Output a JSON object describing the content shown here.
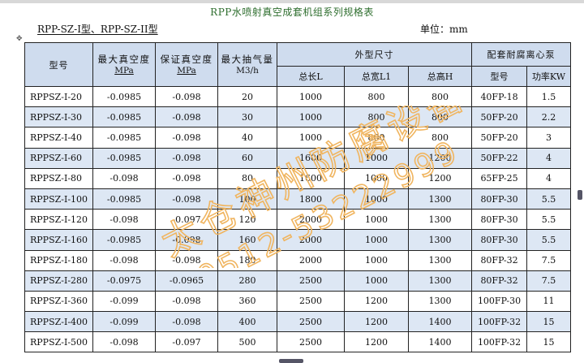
{
  "title": "RPP水喷射真空成套机组系列规格表",
  "subtitle": "RPP-SZ-I型、RPP-SZ-II型",
  "unit_label": "单位：mm",
  "headers": {
    "model": "型号",
    "ult_vacuum": "最大真空度",
    "ult_vacuum_unit": "MPa",
    "guar_vacuum": "保证真空度",
    "guar_vacuum_unit": "MPa",
    "pump_rate": "最大抽气量",
    "pump_rate_unit": "M3/h",
    "dims": "外型尺寸",
    "dim_length": "总长L",
    "dim_width": "总宽L1",
    "dim_height": "总高H",
    "pump": "配套耐腐离心泵",
    "pump_model": "型号",
    "pump_power": "功率KW"
  },
  "rows": [
    {
      "model": "RPPSZ-I-20",
      "ult": "-0.0985",
      "guar": "-0.098",
      "rate": "20",
      "L": "1000",
      "L1": "800",
      "H": "800",
      "pump": "40FP-18",
      "kw": "1.5"
    },
    {
      "model": "RPPSZ-I-30",
      "ult": "-0.0985",
      "guar": "-0.098",
      "rate": "30",
      "L": "1000",
      "L1": "800",
      "H": "800",
      "pump": "50FP-20",
      "kw": "2.2"
    },
    {
      "model": "RPPSZ-I-40",
      "ult": "-0.0985",
      "guar": "-0.098",
      "rate": "40",
      "L": "1000",
      "L1": "800",
      "H": "800",
      "pump": "50FP-20",
      "kw": "3"
    },
    {
      "model": "RPPSZ-I-60",
      "ult": "-0.0985",
      "guar": "-0.098",
      "rate": "60",
      "L": "1600",
      "L1": "1000",
      "H": "1200",
      "pump": "50FP-22",
      "kw": "4"
    },
    {
      "model": "RPPSZ-I-80",
      "ult": "-0.098",
      "guar": "-0.098",
      "rate": "80",
      "L": "1600",
      "L1": "1000",
      "H": "1200",
      "pump": "65FP-25",
      "kw": "4"
    },
    {
      "model": "RPPSZ-I-100",
      "ult": "-0.0985",
      "guar": "-0.098",
      "rate": "100",
      "L": "1800",
      "L1": "1000",
      "H": "1300",
      "pump": "80FP-30",
      "kw": "5.5"
    },
    {
      "model": "RPPSZ-I-120",
      "ult": "-0.098",
      "guar": "-0.097",
      "rate": "120",
      "L": "2000",
      "L1": "1000",
      "H": "1300",
      "pump": "80FP-30",
      "kw": "5.5"
    },
    {
      "model": "RPPSZ-I-160",
      "ult": "-0.0985",
      "guar": "-0.098",
      "rate": "160",
      "L": "2000",
      "L1": "1000",
      "H": "1300",
      "pump": "80FP-30",
      "kw": "5.5"
    },
    {
      "model": "RPPSZ-I-180",
      "ult": "-0.098",
      "guar": "-0.098",
      "rate": "180",
      "L": "2000",
      "L1": "1000",
      "H": "1300",
      "pump": "80FP-32",
      "kw": "7.5"
    },
    {
      "model": "RPPSZ-I-280",
      "ult": "-0.0975",
      "guar": "-0.0965",
      "rate": "280",
      "L": "2500",
      "L1": "1000",
      "H": "1300",
      "pump": "80FP-32",
      "kw": "7.5"
    },
    {
      "model": "RPPSZ-I-360",
      "ult": "-0.099",
      "guar": "-0.098",
      "rate": "360",
      "L": "2500",
      "L1": "1200",
      "H": "1300",
      "pump": "100FP-30",
      "kw": "11"
    },
    {
      "model": "RPPSZ-I-400",
      "ult": "-0.099",
      "guar": "-0.098",
      "rate": "400",
      "L": "2500",
      "L1": "1200",
      "H": "1400",
      "pump": "100FP-32",
      "kw": "15"
    },
    {
      "model": "RPPSZ-I-500",
      "ult": "-0.098",
      "guar": "-0.097",
      "rate": "500",
      "L": "2500",
      "L1": "1200",
      "H": "1400",
      "pump": "100FP-32",
      "kw": "15"
    }
  ],
  "watermark": {
    "line1": "太仓神州防腐设备",
    "line2": "0512-53222999",
    "color": "#f0b560"
  },
  "colors": {
    "header_bg": "#cfdcee",
    "alt_row_bg": "#dde7f4",
    "title": "#2e6e2e"
  }
}
